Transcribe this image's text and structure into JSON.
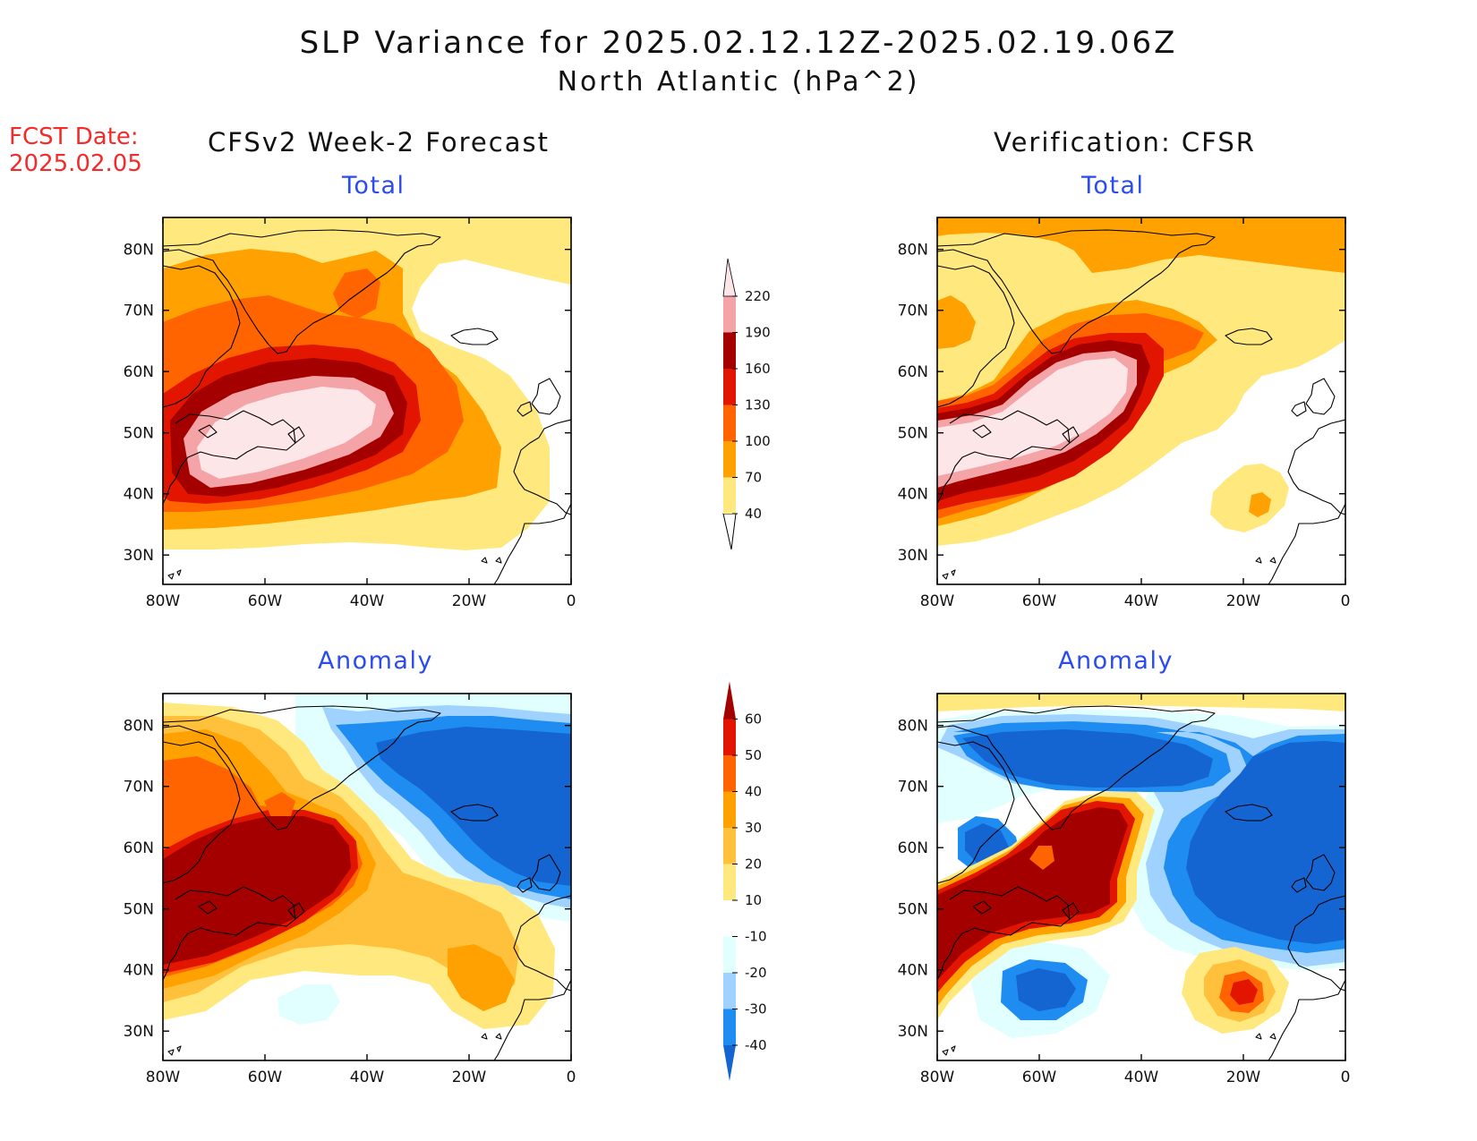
{
  "header": {
    "title": "SLP Variance for 2025.02.12.12Z-2025.02.19.06Z",
    "subtitle": "North Atlantic (hPa^2)",
    "fcst_label": "FCST Date:",
    "fcst_date": "2025.02.05"
  },
  "columns": {
    "left": "CFSv2 Week-2 Forecast",
    "right": "Verification: CFSR"
  },
  "panels": {
    "top_left": "Total",
    "top_right": "Total",
    "bottom_left": "Anomaly",
    "bottom_right": "Anomaly"
  },
  "axes": {
    "lat_ticks": [
      "80N",
      "70N",
      "60N",
      "50N",
      "40N",
      "30N"
    ],
    "lon_ticks": [
      "80W",
      "60W",
      "40W",
      "20W",
      "0"
    ]
  },
  "colorbars": {
    "total": {
      "levels": [
        "40",
        "70",
        "100",
        "130",
        "160",
        "190",
        "220"
      ],
      "colors": [
        "#ffe97e",
        "#ffa100",
        "#ff6400",
        "#e21600",
        "#a50000",
        "#f4a3a7",
        "#fde6e7"
      ]
    },
    "anomaly": {
      "levels": [
        "-40",
        "-30",
        "-20",
        "-10",
        "10",
        "20",
        "30",
        "40",
        "50",
        "60"
      ],
      "colors": [
        "#1464d2",
        "#1e8cf0",
        "#a0d2ff",
        "#e1ffff",
        "#ffffff",
        "#ffe97e",
        "#ffc13c",
        "#ffa100",
        "#ff6400",
        "#e21600",
        "#a50000"
      ]
    }
  }
}
